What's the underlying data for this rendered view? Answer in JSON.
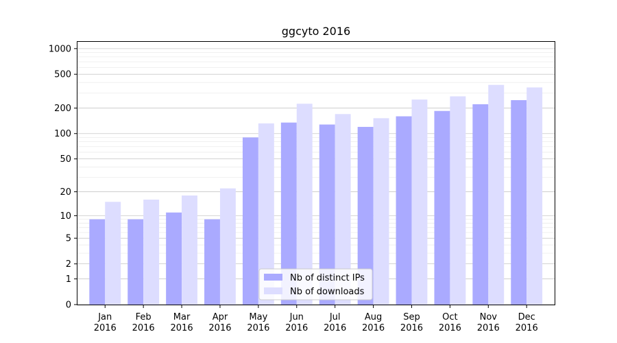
{
  "chart_data": {
    "type": "bar",
    "title": "ggcyto 2016",
    "xlabel": "",
    "ylabel": "",
    "y_scale": "symlog",
    "ylim": [
      0,
      1200
    ],
    "y_ticks": [
      0,
      1,
      2,
      5,
      10,
      20,
      50,
      100,
      200,
      500,
      1000
    ],
    "grid": true,
    "legend_position": "bottom-center",
    "categories": [
      [
        "Jan",
        "2016"
      ],
      [
        "Feb",
        "2016"
      ],
      [
        "Mar",
        "2016"
      ],
      [
        "Apr",
        "2016"
      ],
      [
        "May",
        "2016"
      ],
      [
        "Jun",
        "2016"
      ],
      [
        "Jul",
        "2016"
      ],
      [
        "Aug",
        "2016"
      ],
      [
        "Sep",
        "2016"
      ],
      [
        "Oct",
        "2016"
      ],
      [
        "Nov",
        "2016"
      ],
      [
        "Dec",
        "2016"
      ]
    ],
    "series": [
      {
        "name": "Nb of distinct IPs",
        "color": "#aaaaff",
        "values": [
          9,
          9,
          11,
          9,
          90,
          135,
          128,
          120,
          160,
          185,
          222,
          248
        ]
      },
      {
        "name": "Nb of downloads",
        "color": "#ddddff",
        "values": [
          15,
          16,
          18,
          22,
          132,
          225,
          170,
          152,
          252,
          275,
          375,
          350
        ]
      }
    ]
  }
}
